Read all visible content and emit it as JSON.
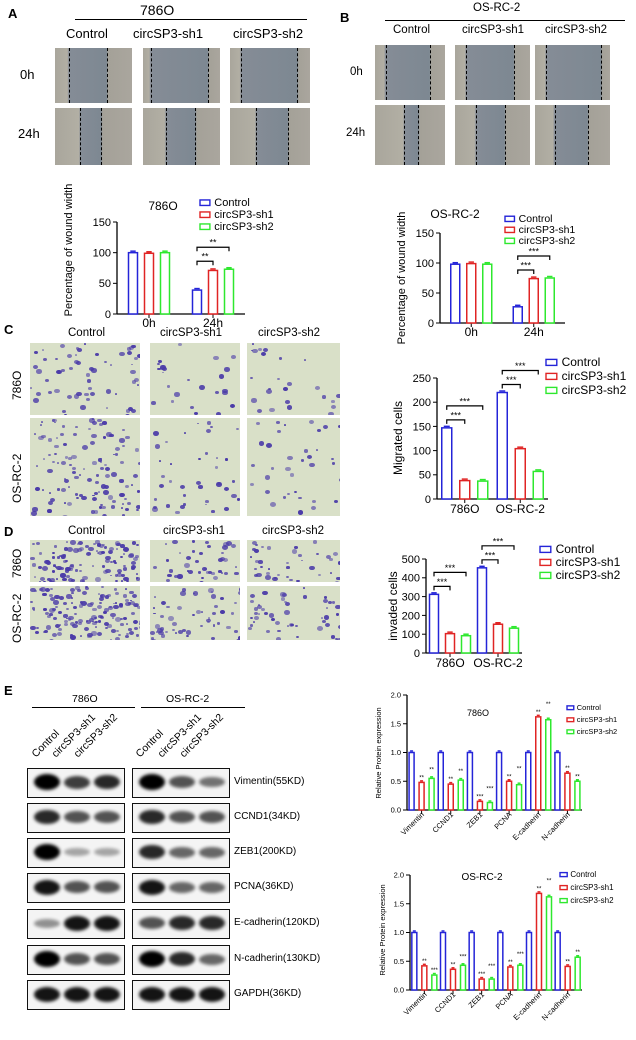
{
  "panels": {
    "A": {
      "label": "A",
      "cell_line": "786O",
      "columns": [
        "Control",
        "circSP3-sh1",
        "circSP3-sh2"
      ],
      "rows": [
        "0h",
        "24h"
      ]
    },
    "B": {
      "label": "B",
      "cell_line": "OS-RC-2",
      "columns": [
        "Control",
        "circSP3-sh1",
        "circSP3-sh2"
      ],
      "rows": [
        "0h",
        "24h"
      ]
    },
    "C": {
      "label": "C",
      "columns": [
        "Control",
        "circSP3-sh1",
        "circSP3-sh2"
      ],
      "rows": [
        "786O",
        "OS-RC-2"
      ]
    },
    "D": {
      "label": "D",
      "columns": [
        "Control",
        "circSP3-sh1",
        "circSP3-sh2"
      ],
      "rows": [
        "786O",
        "OS-RC-2"
      ]
    },
    "E": {
      "label": "E",
      "groups": [
        "786O",
        "OS-RC-2"
      ],
      "lanes": [
        "Control",
        "circSP3-sh1",
        "circSP3-sh2"
      ],
      "blots": [
        {
          "name": "Vimentin(55KD)",
          "intensity": [
            1,
            0.7,
            0.8,
            1,
            0.6,
            0.45
          ]
        },
        {
          "name": "CCND1(34KD)",
          "intensity": [
            0.8,
            0.6,
            0.6,
            0.8,
            0.6,
            0.6
          ]
        },
        {
          "name": "ZEB1(200KD)",
          "intensity": [
            1,
            0.2,
            0.2,
            0.8,
            0.5,
            0.5
          ]
        },
        {
          "name": "PCNA(36KD)",
          "intensity": [
            0.9,
            0.6,
            0.6,
            0.9,
            0.5,
            0.5
          ]
        },
        {
          "name": "E-cadherin(120KD)",
          "intensity": [
            0.3,
            0.9,
            0.9,
            0.6,
            0.8,
            0.8
          ]
        },
        {
          "name": "N-cadherin(130KD)",
          "intensity": [
            1,
            0.6,
            0.6,
            1,
            0.8,
            0.5
          ]
        },
        {
          "name": "GAPDH(36KD)",
          "intensity": [
            0.9,
            0.9,
            0.9,
            0.9,
            0.9,
            0.9
          ]
        }
      ]
    }
  },
  "colors": {
    "Control": "#2424d8",
    "circSP3-sh1": "#e02424",
    "circSP3-sh2": "#2ee82e"
  },
  "chart_data": [
    {
      "type": "bar",
      "title": "786O",
      "ylabel": "Percentage of wound width",
      "ylim": [
        0,
        150
      ],
      "yticks": [
        "0",
        "50",
        "100",
        "150"
      ],
      "categories": [
        "0h",
        "24h"
      ],
      "series": [
        {
          "name": "Control",
          "values": [
            100,
            39
          ]
        },
        {
          "name": "circSP3-sh1",
          "values": [
            99,
            71
          ]
        },
        {
          "name": "circSP3-sh2",
          "values": [
            100,
            73
          ]
        }
      ],
      "comparisons": [
        {
          "category": 1,
          "from": 0,
          "to": 1,
          "label": "**"
        },
        {
          "category": 1,
          "from": 0,
          "to": 2,
          "label": "**"
        }
      ],
      "legend": "top-right"
    },
    {
      "type": "bar",
      "title": "OS-RC-2",
      "ylabel": "Percentage of wound width",
      "ylim": [
        0,
        150
      ],
      "yticks": [
        "0",
        "50",
        "100",
        "150"
      ],
      "categories": [
        "0h",
        "24h"
      ],
      "series": [
        {
          "name": "Control",
          "values": [
            98,
            27
          ]
        },
        {
          "name": "circSP3-sh1",
          "values": [
            99,
            74
          ]
        },
        {
          "name": "circSP3-sh2",
          "values": [
            98,
            75
          ]
        }
      ],
      "comparisons": [
        {
          "category": 1,
          "from": 0,
          "to": 1,
          "label": "***"
        },
        {
          "category": 1,
          "from": 0,
          "to": 2,
          "label": "***"
        }
      ],
      "legend": "top-right"
    },
    {
      "type": "bar",
      "title": "",
      "ylabel": "Migrated cells",
      "ylim": [
        0,
        250
      ],
      "yticks": [
        "0",
        "50",
        "100",
        "150",
        "200",
        "250"
      ],
      "categories": [
        "786O",
        "OS-RC-2"
      ],
      "series": [
        {
          "name": "Control",
          "values": [
            147,
            220
          ]
        },
        {
          "name": "circSP3-sh1",
          "values": [
            38,
            104
          ]
        },
        {
          "name": "circSP3-sh2",
          "values": [
            37,
            57
          ]
        }
      ],
      "comparisons": [
        {
          "category": 0,
          "from": 0,
          "to": 1,
          "label": "***"
        },
        {
          "category": 0,
          "from": 0,
          "to": 2,
          "label": "***"
        },
        {
          "category": 1,
          "from": 0,
          "to": 1,
          "label": "***"
        },
        {
          "category": 1,
          "from": 0,
          "to": 2,
          "label": "***"
        }
      ],
      "legend": "right"
    },
    {
      "type": "bar",
      "title": "",
      "ylabel": "invaded cells",
      "ylim": [
        0,
        500
      ],
      "yticks": [
        "0",
        "100",
        "200",
        "300",
        "400",
        "500"
      ],
      "categories": [
        "786O",
        "OS-RC-2"
      ],
      "series": [
        {
          "name": "Control",
          "values": [
            312,
            453
          ]
        },
        {
          "name": "circSP3-sh1",
          "values": [
            103,
            153
          ]
        },
        {
          "name": "circSP3-sh2",
          "values": [
            92,
            132
          ]
        }
      ],
      "comparisons": [
        {
          "category": 0,
          "from": 0,
          "to": 1,
          "label": "***"
        },
        {
          "category": 0,
          "from": 0,
          "to": 2,
          "label": "***"
        },
        {
          "category": 1,
          "from": 0,
          "to": 1,
          "label": "***"
        },
        {
          "category": 1,
          "from": 0,
          "to": 2,
          "label": "***"
        }
      ],
      "legend": "right"
    },
    {
      "type": "bar",
      "title": "786O",
      "ylabel": "Relative Protein expression",
      "ylim": [
        0,
        2
      ],
      "yticks": [
        "0.0",
        "0.5",
        "1.0",
        "1.5",
        "2.0"
      ],
      "categories": [
        "Vimentin",
        "CCND1",
        "ZEB1",
        "PCNA",
        "E-cadherin",
        "N-cadherin"
      ],
      "series": [
        {
          "name": "Control",
          "values": [
            1,
            1,
            1,
            1,
            1,
            1
          ],
          "sig": [
            "",
            "",
            "",
            "",
            "",
            ""
          ]
        },
        {
          "name": "circSP3-sh1",
          "values": [
            0.48,
            0.45,
            0.15,
            0.5,
            1.62,
            0.64
          ],
          "sig": [
            "**",
            "**",
            "***",
            "**",
            "**",
            "**"
          ]
        },
        {
          "name": "circSP3-sh2",
          "values": [
            0.55,
            0.52,
            0.13,
            0.44,
            1.57,
            0.5
          ],
          "sig": [
            "**",
            "**",
            "***",
            "**",
            "**",
            "**"
          ]
        }
      ],
      "legend": "top-right"
    },
    {
      "type": "bar",
      "title": "OS-RC-2",
      "ylabel": "Relative Protein expression",
      "ylim": [
        0,
        2
      ],
      "yticks": [
        "0.0",
        "0.5",
        "1.0",
        "1.5",
        "2.0"
      ],
      "categories": [
        "Vimentin",
        "CCND1",
        "ZEB1",
        "PCNA",
        "E-cadherin",
        "N-cadherin"
      ],
      "series": [
        {
          "name": "Control",
          "values": [
            1,
            1,
            1,
            1,
            1,
            1
          ],
          "sig": [
            "",
            "",
            "",
            "",
            "",
            ""
          ]
        },
        {
          "name": "circSP3-sh1",
          "values": [
            0.42,
            0.36,
            0.19,
            0.4,
            1.68,
            0.41
          ],
          "sig": [
            "**",
            "**",
            "***",
            "**",
            "**",
            "**"
          ]
        },
        {
          "name": "circSP3-sh2",
          "values": [
            0.26,
            0.43,
            0.19,
            0.43,
            1.62,
            0.57
          ],
          "sig": [
            "***",
            "***",
            "***",
            "***",
            "**",
            "**"
          ]
        }
      ],
      "legend": "top-right"
    }
  ]
}
